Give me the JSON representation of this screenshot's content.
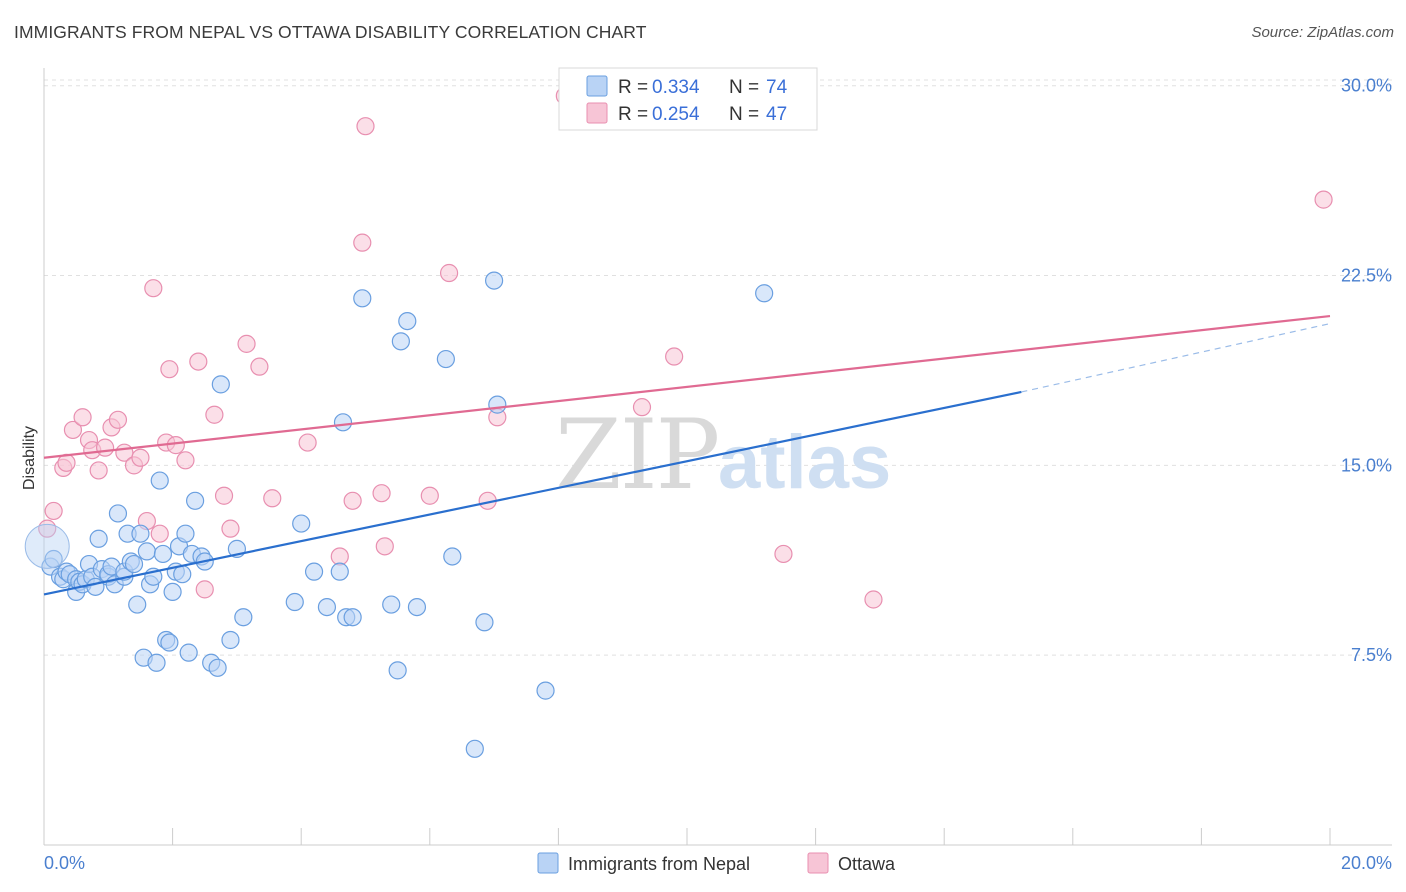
{
  "title": "IMMIGRANTS FROM NEPAL VS OTTAWA DISABILITY CORRELATION CHART",
  "source": "Source: ZipAtlas.com",
  "watermark": {
    "zip": "ZIP",
    "atlas": "atlas"
  },
  "colors": {
    "blue": "#4a90e2",
    "blue_fill": "#b9d3f5",
    "blue_line": "#2a6fce",
    "pink": "#e8709a",
    "pink_fill": "#f7c5d6",
    "pink_line": "#e06a92",
    "tick_label": "#4a7fcf",
    "grid": "#e0e0e0"
  },
  "legend": {
    "rows": [
      {
        "r_label": "R =",
        "r_value": "0.334",
        "n_label": "N =",
        "n_value": "74"
      },
      {
        "r_label": "R =",
        "r_value": "0.254",
        "n_label": "N =",
        "n_value": "47"
      }
    ]
  },
  "bottom_legend": [
    "Immigrants from Nepal",
    "Ottawa"
  ],
  "chart_data": {
    "type": "scatter",
    "title": "IMMIGRANTS FROM NEPAL VS OTTAWA DISABILITY CORRELATION CHART",
    "xlabel": "",
    "ylabel": "Disability",
    "xlim": [
      0,
      20
    ],
    "ylim": [
      0,
      30.7
    ],
    "x_tick_labels": [
      "0.0%",
      "20.0%"
    ],
    "y_ticks": [
      7.5,
      15.0,
      22.5,
      30.0
    ],
    "y_tick_labels": [
      "7.5%",
      "15.0%",
      "22.5%",
      "30.0%"
    ],
    "grid": true,
    "legend_position": "top-center",
    "series": [
      {
        "name": "Immigrants from Nepal",
        "color": "#4a90e2",
        "R": 0.334,
        "N": 74,
        "trend": {
          "x0": 0,
          "y0": 9.9,
          "x1": 15.2,
          "y1": 17.9,
          "dashed_to_x": 20,
          "dashed_to_y": 20.6
        },
        "points": [
          [
            0.1,
            11.0
          ],
          [
            0.15,
            11.3
          ],
          [
            0.25,
            10.6
          ],
          [
            0.3,
            10.5
          ],
          [
            0.35,
            10.8
          ],
          [
            0.4,
            10.7
          ],
          [
            0.5,
            10.5
          ],
          [
            0.5,
            10.0
          ],
          [
            0.55,
            10.4
          ],
          [
            0.6,
            10.3
          ],
          [
            0.65,
            10.5
          ],
          [
            0.7,
            11.1
          ],
          [
            0.75,
            10.6
          ],
          [
            0.8,
            10.2
          ],
          [
            0.85,
            12.1
          ],
          [
            0.9,
            10.9
          ],
          [
            1.0,
            10.6
          ],
          [
            1.0,
            10.7
          ],
          [
            1.05,
            11.0
          ],
          [
            1.1,
            10.3
          ],
          [
            1.15,
            13.1
          ],
          [
            1.25,
            10.6
          ],
          [
            1.25,
            10.8
          ],
          [
            1.3,
            12.3
          ],
          [
            1.35,
            11.2
          ],
          [
            1.4,
            11.1
          ],
          [
            1.45,
            9.5
          ],
          [
            1.5,
            12.3
          ],
          [
            1.55,
            7.4
          ],
          [
            1.6,
            11.6
          ],
          [
            1.65,
            10.3
          ],
          [
            1.7,
            10.6
          ],
          [
            1.75,
            7.2
          ],
          [
            1.8,
            14.4
          ],
          [
            1.85,
            11.5
          ],
          [
            1.9,
            8.1
          ],
          [
            1.95,
            8.0
          ],
          [
            2.0,
            10.0
          ],
          [
            2.05,
            10.8
          ],
          [
            2.1,
            11.8
          ],
          [
            2.15,
            10.7
          ],
          [
            2.2,
            12.3
          ],
          [
            2.25,
            7.6
          ],
          [
            2.3,
            11.5
          ],
          [
            2.35,
            13.6
          ],
          [
            2.45,
            11.4
          ],
          [
            2.5,
            11.2
          ],
          [
            2.6,
            7.2
          ],
          [
            2.7,
            7.0
          ],
          [
            2.75,
            18.2
          ],
          [
            2.9,
            8.1
          ],
          [
            3.0,
            11.7
          ],
          [
            3.1,
            9.0
          ],
          [
            3.9,
            9.6
          ],
          [
            4.0,
            12.7
          ],
          [
            4.2,
            10.8
          ],
          [
            4.4,
            9.4
          ],
          [
            4.6,
            10.8
          ],
          [
            4.65,
            16.7
          ],
          [
            4.7,
            9.0
          ],
          [
            4.8,
            9.0
          ],
          [
            4.95,
            21.6
          ],
          [
            5.4,
            9.5
          ],
          [
            5.5,
            6.9
          ],
          [
            5.55,
            19.9
          ],
          [
            5.65,
            20.7
          ],
          [
            5.8,
            9.4
          ],
          [
            6.25,
            19.2
          ],
          [
            6.35,
            11.4
          ],
          [
            6.7,
            3.8
          ],
          [
            6.85,
            8.8
          ],
          [
            7.0,
            22.3
          ],
          [
            7.05,
            17.4
          ],
          [
            7.8,
            6.1
          ],
          [
            11.2,
            21.8
          ]
        ]
      },
      {
        "name": "Ottawa",
        "color": "#e8709a",
        "R": 0.254,
        "N": 47,
        "trend": {
          "x0": 0,
          "y0": 15.3,
          "x1": 20,
          "y1": 20.9
        },
        "points": [
          [
            0.05,
            12.5
          ],
          [
            0.15,
            13.2
          ],
          [
            0.3,
            14.9
          ],
          [
            0.35,
            15.1
          ],
          [
            0.45,
            16.4
          ],
          [
            0.6,
            16.9
          ],
          [
            0.7,
            16.0
          ],
          [
            0.75,
            15.6
          ],
          [
            0.85,
            14.8
          ],
          [
            0.95,
            15.7
          ],
          [
            1.05,
            16.5
          ],
          [
            1.15,
            16.8
          ],
          [
            1.25,
            15.5
          ],
          [
            1.4,
            15.0
          ],
          [
            1.5,
            15.3
          ],
          [
            1.6,
            12.8
          ],
          [
            1.7,
            22.0
          ],
          [
            1.8,
            12.3
          ],
          [
            1.9,
            15.9
          ],
          [
            1.95,
            18.8
          ],
          [
            2.05,
            15.8
          ],
          [
            2.2,
            15.2
          ],
          [
            2.4,
            19.1
          ],
          [
            2.5,
            10.1
          ],
          [
            2.65,
            17.0
          ],
          [
            2.8,
            13.8
          ],
          [
            2.9,
            12.5
          ],
          [
            3.15,
            19.8
          ],
          [
            3.35,
            18.9
          ],
          [
            3.55,
            13.7
          ],
          [
            4.1,
            15.9
          ],
          [
            4.6,
            11.4
          ],
          [
            4.8,
            13.6
          ],
          [
            4.95,
            23.8
          ],
          [
            5.0,
            28.4
          ],
          [
            5.25,
            13.9
          ],
          [
            5.3,
            11.8
          ],
          [
            6.0,
            13.8
          ],
          [
            6.3,
            22.6
          ],
          [
            6.9,
            13.6
          ],
          [
            7.05,
            16.9
          ],
          [
            8.1,
            29.6
          ],
          [
            9.3,
            17.3
          ],
          [
            9.8,
            19.3
          ],
          [
            11.5,
            11.5
          ],
          [
            12.9,
            9.7
          ],
          [
            19.9,
            25.5
          ]
        ]
      }
    ]
  }
}
